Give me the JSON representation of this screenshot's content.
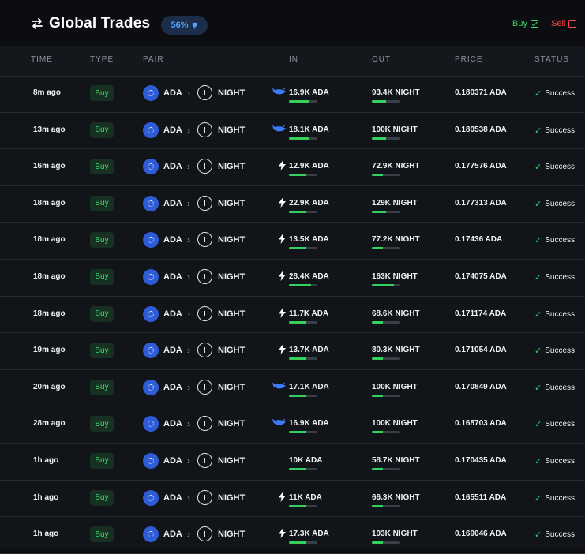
{
  "header": {
    "title": "Global Trades",
    "badge": "56%",
    "filters": {
      "buy_label": "Buy",
      "buy_checked": true,
      "sell_label": "Sell",
      "sell_checked": false
    }
  },
  "columns": [
    "TIME",
    "TYPE",
    "PAIR",
    "IN",
    "OUT",
    "PRICE",
    "STATUS"
  ],
  "colors": {
    "buy": "#38d46a",
    "sell": "#ff4a4a",
    "accent": "#4da3ff",
    "bar": "#34d15f"
  },
  "trades": [
    {
      "time": "8m ago",
      "type": "Buy",
      "base": "ADA",
      "quote": "NIGHT",
      "in_icon": "whale-icon",
      "in": "16.9K ADA",
      "in_bar": 0.72,
      "out": "93.4K NIGHT",
      "out_bar": 0.5,
      "price": "0.180371 ADA",
      "status": "Success"
    },
    {
      "time": "13m ago",
      "type": "Buy",
      "base": "ADA",
      "quote": "NIGHT",
      "in_icon": "whale-icon",
      "in": "18.1K ADA",
      "in_bar": 0.7,
      "out": "100K NIGHT",
      "out_bar": 0.5,
      "price": "0.180538 ADA",
      "status": "Success"
    },
    {
      "time": "16m ago",
      "type": "Buy",
      "base": "ADA",
      "quote": "NIGHT",
      "in_icon": "bolt-icon",
      "in": "12.9K ADA",
      "in_bar": 0.62,
      "out": "72.9K NIGHT",
      "out_bar": 0.38,
      "price": "0.177576 ADA",
      "status": "Success"
    },
    {
      "time": "18m ago",
      "type": "Buy",
      "base": "ADA",
      "quote": "NIGHT",
      "in_icon": "bolt-icon",
      "in": "22.9K ADA",
      "in_bar": 0.62,
      "out": "129K NIGHT",
      "out_bar": 0.5,
      "price": "0.177313 ADA",
      "status": "Success"
    },
    {
      "time": "18m ago",
      "type": "Buy",
      "base": "ADA",
      "quote": "NIGHT",
      "in_icon": "bolt-icon",
      "in": "13.5K ADA",
      "in_bar": 0.62,
      "out": "77.2K NIGHT",
      "out_bar": 0.38,
      "price": "0.17436 ADA",
      "status": "Success"
    },
    {
      "time": "18m ago",
      "type": "Buy",
      "base": "ADA",
      "quote": "NIGHT",
      "in_icon": "bolt-icon",
      "in": "28.4K ADA",
      "in_bar": 0.78,
      "out": "163K NIGHT",
      "out_bar": 0.78,
      "price": "0.174075 ADA",
      "status": "Success"
    },
    {
      "time": "18m ago",
      "type": "Buy",
      "base": "ADA",
      "quote": "NIGHT",
      "in_icon": "bolt-icon",
      "in": "11.7K ADA",
      "in_bar": 0.62,
      "out": "68.6K NIGHT",
      "out_bar": 0.38,
      "price": "0.171174 ADA",
      "status": "Success"
    },
    {
      "time": "19m ago",
      "type": "Buy",
      "base": "ADA",
      "quote": "NIGHT",
      "in_icon": "bolt-icon",
      "in": "13.7K ADA",
      "in_bar": 0.62,
      "out": "80.3K NIGHT",
      "out_bar": 0.38,
      "price": "0.171054 ADA",
      "status": "Success"
    },
    {
      "time": "20m ago",
      "type": "Buy",
      "base": "ADA",
      "quote": "NIGHT",
      "in_icon": "whale-icon",
      "in": "17.1K ADA",
      "in_bar": 0.62,
      "out": "100K NIGHT",
      "out_bar": 0.38,
      "price": "0.170849 ADA",
      "status": "Success"
    },
    {
      "time": "28m ago",
      "type": "Buy",
      "base": "ADA",
      "quote": "NIGHT",
      "in_icon": "whale-icon",
      "in": "16.9K ADA",
      "in_bar": 0.62,
      "out": "100K NIGHT",
      "out_bar": 0.38,
      "price": "0.168703 ADA",
      "status": "Success"
    },
    {
      "time": "1h ago",
      "type": "Buy",
      "base": "ADA",
      "quote": "NIGHT",
      "in_icon": "",
      "in": "10K ADA",
      "in_bar": 0.62,
      "out": "58.7K NIGHT",
      "out_bar": 0.38,
      "price": "0.170435 ADA",
      "status": "Success"
    },
    {
      "time": "1h ago",
      "type": "Buy",
      "base": "ADA",
      "quote": "NIGHT",
      "in_icon": "bolt-icon",
      "in": "11K ADA",
      "in_bar": 0.62,
      "out": "66.3K NIGHT",
      "out_bar": 0.38,
      "price": "0.165511 ADA",
      "status": "Success"
    },
    {
      "time": "1h ago",
      "type": "Buy",
      "base": "ADA",
      "quote": "NIGHT",
      "in_icon": "bolt-icon",
      "in": "17.3K ADA",
      "in_bar": 0.62,
      "out": "103K NIGHT",
      "out_bar": 0.38,
      "price": "0.169046 ADA",
      "status": "Success"
    }
  ]
}
